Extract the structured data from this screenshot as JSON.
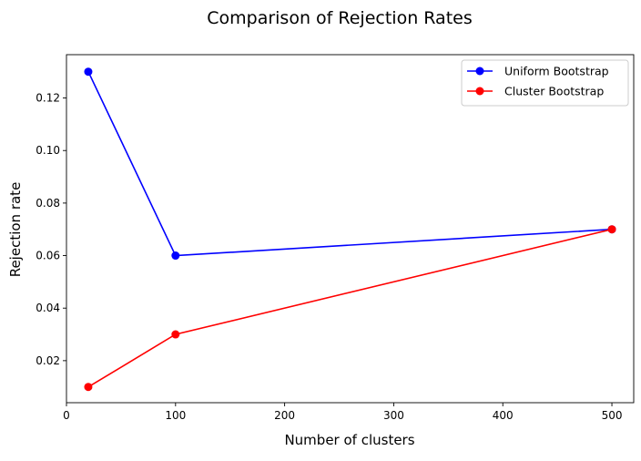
{
  "chart_data": {
    "type": "line",
    "title": "Comparison of Rejection Rates",
    "xlabel": "Number of clusters",
    "ylabel": "Rejection rate",
    "x": [
      20,
      100,
      500
    ],
    "xlim": [
      0,
      520
    ],
    "ylim": [
      0.004,
      0.1365
    ],
    "xticks": [
      0,
      100,
      200,
      300,
      400,
      500
    ],
    "xtick_labels": [
      "0",
      "100",
      "200",
      "300",
      "400",
      "500"
    ],
    "yticks": [
      0.02,
      0.04,
      0.06,
      0.08,
      0.1,
      0.12
    ],
    "ytick_labels": [
      "0.02",
      "0.04",
      "0.06",
      "0.08",
      "0.10",
      "0.12"
    ],
    "grid": false,
    "legend_position": "top-right",
    "series": [
      {
        "name": "Uniform Bootstrap",
        "color": "#0000ff",
        "marker": "circle",
        "values": [
          0.13,
          0.06,
          0.07
        ]
      },
      {
        "name": "Cluster Bootstrap",
        "color": "#ff0000",
        "marker": "circle",
        "values": [
          0.01,
          0.03,
          0.07
        ]
      }
    ]
  }
}
